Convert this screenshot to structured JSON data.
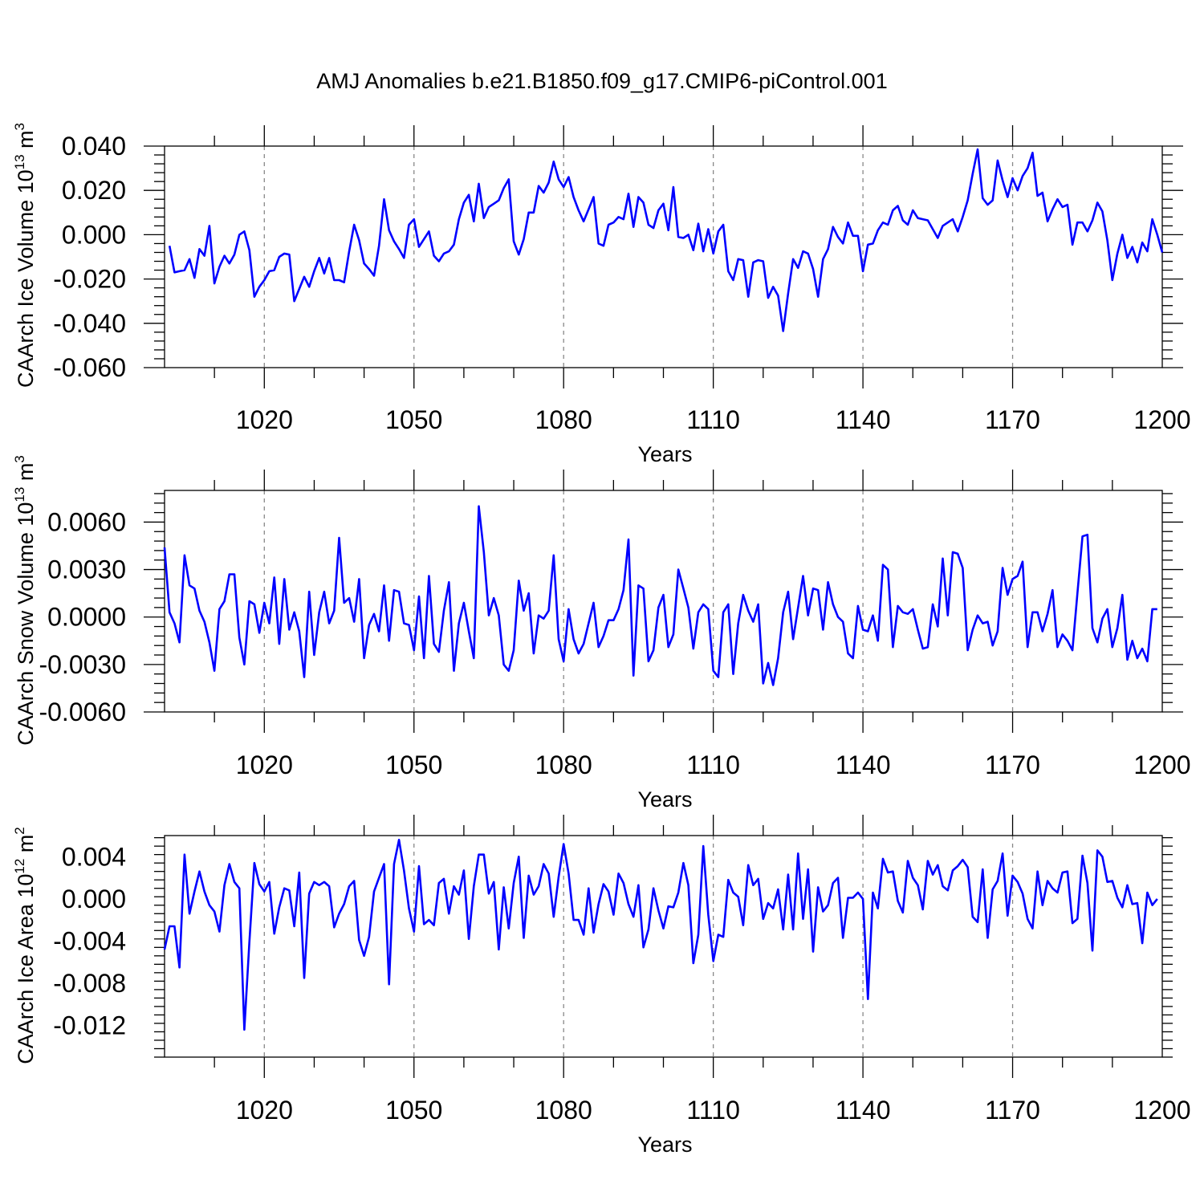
{
  "title": "AMJ Anomalies b.e21.B1850.f09_g17.CMIP6-piControl.001",
  "line_color": "#0000ff",
  "chart_data": [
    {
      "type": "line",
      "ylabel": {
        "text": "CAArch Ice Volume 10",
        "sup": "13",
        "unit": " m",
        "unit_sup": "3"
      },
      "xlabel": "Years",
      "xlim": [
        1000,
        1200
      ],
      "ylim": [
        -0.06,
        0.04
      ],
      "xticks": [
        1020,
        1050,
        1080,
        1110,
        1140,
        1170,
        1200
      ],
      "yticks": [
        -0.06,
        -0.04,
        -0.02,
        0.0,
        0.02,
        0.04
      ],
      "ytick_labels": [
        "-0.060",
        "-0.040",
        "-0.020",
        "0.000",
        "0.020",
        "0.040"
      ],
      "x_start": 1001,
      "values": [
        -0.005,
        -0.017,
        -0.0165,
        -0.016,
        -0.011,
        -0.0195,
        -0.0065,
        -0.0095,
        0.004,
        -0.022,
        -0.0145,
        -0.0095,
        -0.013,
        -0.009,
        0.0,
        0.0015,
        -0.007,
        -0.028,
        -0.0235,
        -0.0205,
        -0.0165,
        -0.016,
        -0.01,
        -0.0085,
        -0.009,
        -0.03,
        -0.0245,
        -0.019,
        -0.0235,
        -0.0165,
        -0.0105,
        -0.0175,
        -0.0105,
        -0.0205,
        -0.0205,
        -0.0215,
        -0.0075,
        0.0045,
        -0.0025,
        -0.013,
        -0.0155,
        -0.0185,
        -0.005,
        0.016,
        0.002,
        -0.003,
        -0.0065,
        -0.0105,
        0.0045,
        0.007,
        -0.0055,
        -0.002,
        0.0015,
        -0.0095,
        -0.012,
        -0.0085,
        -0.0075,
        -0.0045,
        0.007,
        0.0145,
        0.018,
        0.006,
        0.023,
        0.0075,
        0.0125,
        0.014,
        0.0155,
        0.021,
        0.025,
        -0.003,
        -0.009,
        -0.002,
        0.01,
        0.01,
        0.022,
        0.019,
        0.0235,
        0.033,
        0.025,
        0.0215,
        0.026,
        0.017,
        0.011,
        0.006,
        0.0115,
        0.017,
        -0.004,
        -0.005,
        0.0045,
        0.0055,
        0.008,
        0.007,
        0.0185,
        0.0035,
        0.017,
        0.0145,
        0.0045,
        0.003,
        0.011,
        0.014,
        0.002,
        0.0215,
        -0.001,
        -0.0015,
        0.0,
        -0.007,
        0.005,
        -0.0075,
        0.0025,
        -0.0085,
        0.0015,
        0.0045,
        -0.0165,
        -0.0205,
        -0.011,
        -0.0115,
        -0.028,
        -0.0125,
        -0.0115,
        -0.012,
        -0.0285,
        -0.0235,
        -0.0275,
        -0.0435,
        -0.0265,
        -0.011,
        -0.015,
        -0.0075,
        -0.0085,
        -0.0155,
        -0.028,
        -0.011,
        -0.0065,
        0.0035,
        -0.001,
        -0.004,
        0.0055,
        -0.0005,
        -0.0005,
        -0.0165,
        -0.0045,
        -0.004,
        0.002,
        0.0055,
        0.0045,
        0.011,
        0.013,
        0.0065,
        0.0045,
        0.011,
        0.0075,
        0.007,
        0.0065,
        0.0025,
        -0.0015,
        0.004,
        0.0055,
        0.007,
        0.0015,
        0.008,
        0.0155,
        0.0275,
        0.0385,
        0.0165,
        0.0135,
        0.0155,
        0.0335,
        0.0245,
        0.017,
        0.0255,
        0.02,
        0.0265,
        0.03,
        0.037,
        0.0175,
        0.019,
        0.006,
        0.0115,
        0.016,
        0.0125,
        0.0135,
        -0.0045,
        0.0055,
        0.0055,
        0.0015,
        0.0065,
        0.0145,
        0.0105,
        -0.0025,
        -0.0205,
        -0.0085,
        0.0,
        -0.0105,
        -0.0055,
        -0.0125,
        -0.0035,
        -0.0075,
        0.007,
        0.0,
        -0.008
      ]
    },
    {
      "type": "line",
      "ylabel": {
        "text": "CAArch Snow Volume 10",
        "sup": "13",
        "unit": " m",
        "unit_sup": "3"
      },
      "xlabel": "Years",
      "xlim": [
        1000,
        1200
      ],
      "ylim": [
        -0.006,
        0.008
      ],
      "xticks": [
        1020,
        1050,
        1080,
        1110,
        1140,
        1170,
        1200
      ],
      "yticks": [
        -0.006,
        -0.003,
        0.0,
        0.003,
        0.006
      ],
      "ytick_labels": [
        "-0.0060",
        "-0.0030",
        "0.0000",
        "0.0030",
        "0.0060"
      ],
      "x_start": 1000,
      "values": [
        0.0044,
        0.0003,
        -0.0004,
        -0.0016,
        0.0039,
        0.002,
        0.0018,
        0.0004,
        -0.0003,
        -0.0016,
        -0.0034,
        0.0005,
        0.001,
        0.0027,
        0.0027,
        -0.0013,
        -0.003,
        0.001,
        0.0008,
        -0.001,
        0.0009,
        -0.0004,
        0.0025,
        -0.0017,
        0.0024,
        -0.0008,
        0.0003,
        -0.0009,
        -0.0038,
        0.0016,
        -0.0024,
        0.0003,
        0.0016,
        -0.0004,
        0.0004,
        0.005,
        0.0009,
        0.0012,
        -0.0003,
        0.0024,
        -0.0026,
        -0.0005,
        0.0002,
        -0.0009,
        0.002,
        -0.0015,
        0.0017,
        0.0016,
        -0.0004,
        -0.0005,
        -0.0021,
        0.0013,
        -0.0026,
        0.0026,
        -0.0017,
        -0.0022,
        0.0004,
        0.0022,
        -0.0034,
        -0.0004,
        0.0009,
        -0.0009,
        -0.0026,
        0.007,
        0.0041,
        0.0001,
        0.0012,
        0.0001,
        -0.003,
        -0.0034,
        -0.0021,
        0.0023,
        0.0004,
        0.0015,
        -0.0023,
        0.0001,
        -0.0001,
        0.0004,
        0.0039,
        -0.0014,
        -0.0028,
        0.0005,
        -0.0014,
        -0.0023,
        -0.0017,
        -0.0004,
        0.0009,
        -0.0019,
        -0.0012,
        -0.0002,
        -0.0002,
        0.0005,
        0.0017,
        0.0049,
        -0.0037,
        0.002,
        0.0018,
        -0.0028,
        -0.0021,
        0.0006,
        0.0014,
        -0.0019,
        -0.0011,
        0.003,
        0.0018,
        0.0006,
        -0.002,
        0.0003,
        0.0008,
        0.0005,
        -0.0034,
        -0.0038,
        0.0003,
        0.0008,
        -0.0036,
        -0.0004,
        0.0014,
        0.0004,
        -0.0003,
        0.0008,
        -0.0042,
        -0.0029,
        -0.0043,
        -0.0026,
        0.0003,
        0.0016,
        -0.0014,
        0.0006,
        0.0026,
        0.0001,
        0.0018,
        0.0017,
        -0.0008,
        0.0022,
        0.0008,
        0.0,
        -0.0003,
        -0.0023,
        -0.0026,
        0.0007,
        -0.0008,
        -0.0009,
        0.0001,
        -0.0015,
        0.0033,
        0.003,
        -0.0019,
        0.0007,
        0.0003,
        0.0002,
        0.0005,
        -0.0008,
        -0.002,
        -0.0019,
        0.0008,
        -0.0006,
        0.0037,
        0.0001,
        0.0041,
        0.004,
        0.0031,
        -0.0021,
        -0.0008,
        0.0001,
        -0.0004,
        -0.0003,
        -0.0018,
        -0.0009,
        0.0031,
        0.0014,
        0.0024,
        0.0026,
        0.0035,
        -0.0019,
        0.0003,
        0.0003,
        -0.0009,
        0.0002,
        0.0017,
        -0.0019,
        -0.0011,
        -0.0015,
        -0.0021,
        0.0015,
        0.0051,
        0.0052,
        -0.0007,
        -0.0016,
        -0.0001,
        0.0005,
        -0.0019,
        -0.0007,
        0.0014,
        -0.0027,
        -0.0015,
        -0.0026,
        -0.002,
        -0.0028,
        0.0005,
        0.0005
      ]
    },
    {
      "type": "line",
      "ylabel": {
        "text": "CAArch Ice Area 10",
        "sup": "12",
        "unit": " m",
        "unit_sup": "2"
      },
      "xlabel": "Years",
      "xlim": [
        1000,
        1200
      ],
      "ylim": [
        -0.015,
        0.006
      ],
      "xticks": [
        1020,
        1050,
        1080,
        1110,
        1140,
        1170,
        1200
      ],
      "yticks": [
        -0.012,
        -0.008,
        -0.004,
        0.0,
        0.004
      ],
      "ytick_labels": [
        "-0.012",
        "-0.008",
        "-0.004",
        "0.000",
        "0.004"
      ],
      "x_start": 1000,
      "values": [
        -0.0048,
        -0.0026,
        -0.0026,
        -0.0065,
        0.0042,
        -0.0014,
        0.0007,
        0.0026,
        0.0007,
        -0.0006,
        -0.0012,
        -0.0031,
        0.0013,
        0.0033,
        0.0016,
        0.001,
        -0.0124,
        -0.0041,
        0.0034,
        0.0014,
        0.0007,
        0.0016,
        -0.0033,
        -0.0008,
        0.001,
        0.0008,
        -0.0026,
        0.0025,
        -0.0075,
        0.0005,
        0.0016,
        0.0013,
        0.0016,
        0.0012,
        -0.0027,
        -0.0014,
        -0.0005,
        0.0012,
        0.0017,
        -0.0039,
        -0.0054,
        -0.0036,
        0.0007,
        0.002,
        0.0033,
        -0.0081,
        0.0033,
        0.0056,
        0.0027,
        -0.0009,
        -0.0031,
        0.0031,
        -0.0024,
        -0.002,
        -0.0025,
        0.0015,
        0.0019,
        -0.0014,
        0.0012,
        0.0004,
        0.0027,
        -0.0038,
        0.0012,
        0.0042,
        0.0042,
        0.0005,
        0.0016,
        -0.0048,
        0.0011,
        -0.0028,
        0.0015,
        0.004,
        -0.0037,
        0.0022,
        0.0004,
        0.0012,
        0.0033,
        0.0024,
        -0.0017,
        0.0021,
        0.0052,
        0.0024,
        -0.002,
        -0.002,
        -0.0034,
        0.001,
        -0.0032,
        -0.0005,
        0.0014,
        0.0007,
        -0.0015,
        0.0024,
        0.0015,
        -0.0005,
        -0.0017,
        0.0013,
        -0.0046,
        -0.0029,
        0.001,
        -0.0011,
        -0.0028,
        -0.0007,
        -0.0008,
        0.0006,
        0.0034,
        0.0013,
        -0.0061,
        -0.0034,
        0.005,
        -0.0015,
        -0.0059,
        -0.0034,
        -0.0036,
        0.0018,
        0.0006,
        0.0002,
        -0.0025,
        0.0032,
        0.0013,
        0.0019,
        -0.0019,
        -0.0004,
        -0.0009,
        0.0009,
        -0.0029,
        0.0023,
        -0.0029,
        0.0043,
        -0.0019,
        0.0028,
        -0.005,
        0.0011,
        -0.0012,
        -0.0006,
        0.0015,
        0.002,
        -0.0037,
        0.0001,
        0.0001,
        0.0006,
        0.0,
        -0.0095,
        0.0006,
        -0.0009,
        0.0038,
        0.0025,
        0.0026,
        -0.0002,
        -0.0013,
        0.0036,
        0.002,
        0.0013,
        -0.001,
        0.0036,
        0.0023,
        0.0032,
        0.0012,
        0.0008,
        0.0027,
        0.0031,
        0.0037,
        0.003,
        -0.0017,
        -0.0022,
        0.0028,
        -0.0037,
        0.0009,
        0.0017,
        0.0043,
        -0.0016,
        0.0022,
        0.0016,
        0.0005,
        -0.0019,
        -0.0028,
        0.0026,
        -0.0006,
        0.0017,
        0.001,
        0.0006,
        0.0025,
        0.0026,
        -0.0023,
        -0.0019,
        0.0041,
        0.0015,
        -0.0049,
        0.0046,
        0.004,
        0.0016,
        0.0017,
        0.0001,
        -0.0008,
        0.0013,
        -0.0005,
        -0.0004,
        -0.0042,
        0.0006,
        -0.0006,
        0.0
      ]
    }
  ]
}
